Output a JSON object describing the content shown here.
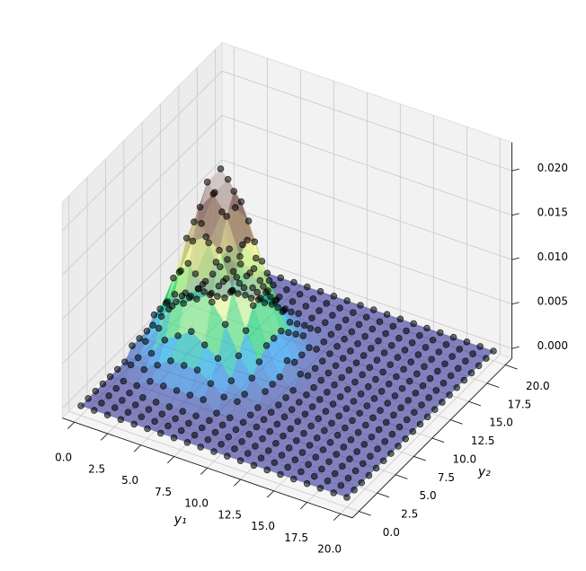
{
  "chart_data": {
    "type": "surface3d",
    "x_label": "y₁",
    "y_label": "y₂",
    "x": [
      0,
      1,
      2,
      3,
      4,
      5,
      6,
      7,
      8,
      9,
      10,
      11,
      12,
      13,
      14,
      15,
      16,
      17,
      18,
      19,
      20
    ],
    "y": [
      0,
      1,
      2,
      3,
      4,
      5,
      6,
      7,
      8,
      9,
      10,
      11,
      12,
      13,
      14,
      15,
      16,
      17,
      18,
      19,
      20
    ],
    "z": [
      [
        0,
        0,
        0,
        0,
        0,
        0,
        0,
        0.001,
        0.001,
        0.001,
        0.002,
        0.001,
        0.001,
        0.001,
        0,
        0,
        0,
        0,
        0,
        0,
        0
      ],
      [
        0,
        0,
        0,
        0,
        0,
        0.001,
        0.001,
        0.002,
        0.003,
        0.004,
        0.004,
        0.004,
        0.003,
        0.002,
        0.001,
        0.001,
        0,
        0,
        0,
        0,
        0
      ],
      [
        0,
        0,
        0,
        0,
        0,
        0.001,
        0.002,
        0.004,
        0.006,
        0.008,
        0.008,
        0.008,
        0.006,
        0.004,
        0.002,
        0.001,
        0,
        0,
        0,
        0,
        0
      ],
      [
        0,
        0,
        0,
        0,
        0.001,
        0.002,
        0.004,
        0.007,
        0.01,
        0.013,
        0.014,
        0.013,
        0.01,
        0.007,
        0.004,
        0.002,
        0.001,
        0,
        0,
        0,
        0
      ],
      [
        0,
        0,
        0,
        0,
        0.001,
        0.003,
        0.005,
        0.009,
        0.014,
        0.017,
        0.019,
        0.017,
        0.014,
        0.009,
        0.005,
        0.003,
        0.001,
        0,
        0,
        0,
        0
      ],
      [
        0,
        0,
        0,
        0,
        0.001,
        0.003,
        0.006,
        0.01,
        0.015,
        0.019,
        0.021,
        0.019,
        0.015,
        0.01,
        0.006,
        0.003,
        0.001,
        0,
        0,
        0,
        0
      ],
      [
        0,
        0,
        0,
        0,
        0.001,
        0.003,
        0.005,
        0.009,
        0.014,
        0.017,
        0.019,
        0.017,
        0.014,
        0.009,
        0.005,
        0.003,
        0.001,
        0,
        0,
        0,
        0
      ],
      [
        0,
        0,
        0,
        0,
        0.001,
        0.002,
        0.004,
        0.007,
        0.01,
        0.013,
        0.014,
        0.013,
        0.01,
        0.007,
        0.004,
        0.002,
        0.001,
        0,
        0,
        0,
        0
      ],
      [
        0,
        0,
        0,
        0,
        0,
        0.001,
        0.002,
        0.004,
        0.006,
        0.008,
        0.008,
        0.008,
        0.006,
        0.004,
        0.002,
        0.001,
        0,
        0,
        0,
        0,
        0
      ],
      [
        0,
        0,
        0,
        0,
        0,
        0.001,
        0.001,
        0.002,
        0.003,
        0.004,
        0.004,
        0.004,
        0.003,
        0.002,
        0.001,
        0.001,
        0,
        0,
        0,
        0,
        0
      ],
      [
        0,
        0,
        0,
        0,
        0,
        0,
        0,
        0.001,
        0.001,
        0.001,
        0.002,
        0.001,
        0.001,
        0.001,
        0,
        0,
        0,
        0,
        0,
        0,
        0
      ],
      [
        0,
        0,
        0,
        0,
        0,
        0,
        0,
        0,
        0,
        0,
        0.001,
        0,
        0,
        0,
        0,
        0,
        0,
        0,
        0,
        0,
        0
      ],
      [
        0,
        0,
        0,
        0,
        0,
        0,
        0,
        0,
        0,
        0,
        0,
        0,
        0,
        0,
        0,
        0,
        0,
        0,
        0,
        0,
        0
      ],
      [
        0,
        0,
        0,
        0,
        0,
        0,
        0,
        0,
        0,
        0,
        0,
        0,
        0,
        0,
        0,
        0,
        0,
        0,
        0,
        0,
        0
      ],
      [
        0,
        0,
        0,
        0,
        0,
        0,
        0,
        0,
        0,
        0,
        0,
        0,
        0,
        0,
        0,
        0,
        0,
        0,
        0,
        0,
        0
      ],
      [
        0,
        0,
        0,
        0,
        0,
        0,
        0,
        0,
        0,
        0,
        0,
        0,
        0,
        0,
        0,
        0,
        0,
        0,
        0,
        0,
        0
      ],
      [
        0,
        0,
        0,
        0,
        0,
        0,
        0,
        0,
        0,
        0,
        0,
        0,
        0,
        0,
        0,
        0,
        0,
        0,
        0,
        0,
        0
      ],
      [
        0,
        0,
        0,
        0,
        0,
        0,
        0,
        0,
        0,
        0,
        0,
        0,
        0,
        0,
        0,
        0,
        0,
        0,
        0,
        0,
        0
      ],
      [
        0,
        0,
        0,
        0,
        0,
        0,
        0,
        0,
        0,
        0,
        0,
        0,
        0,
        0,
        0,
        0,
        0,
        0,
        0,
        0,
        0
      ],
      [
        0,
        0,
        0,
        0,
        0,
        0,
        0,
        0,
        0,
        0,
        0,
        0,
        0,
        0,
        0,
        0,
        0,
        0,
        0,
        0,
        0
      ],
      [
        0,
        0,
        0,
        0,
        0,
        0,
        0,
        0,
        0,
        0,
        0,
        0,
        0,
        0,
        0,
        0,
        0,
        0,
        0,
        0,
        0
      ]
    ],
    "colormap": "terrain",
    "alpha": 0.6,
    "marker_color": "#000000",
    "xlim": [
      -0.9,
      20.9
    ],
    "ylim": [
      -0.9,
      20.9
    ],
    "zlim": [
      -0.0011,
      0.0232
    ],
    "xticks": [
      {
        "value": 0,
        "label": "0.0"
      },
      2.5,
      {
        "value": 5,
        "label": "5.0"
      },
      7.5,
      {
        "value": 10,
        "label": "10.0"
      },
      12.5,
      {
        "value": 15,
        "label": "15.0"
      },
      17.5,
      {
        "value": 20,
        "label": "20.0"
      }
    ],
    "yticks": [
      {
        "value": 0,
        "label": "0.0"
      },
      2.5,
      {
        "value": 5,
        "label": "5.0"
      },
      7.5,
      {
        "value": 10,
        "label": "10.0"
      },
      12.5,
      {
        "value": 15,
        "label": "15.0"
      },
      17.5,
      {
        "value": 20,
        "label": "20.0"
      }
    ],
    "zticks": [
      {
        "value": 0,
        "label": "0.000"
      },
      {
        "value": 0.005,
        "label": "0.005"
      },
      {
        "value": 0.01,
        "label": "0.010"
      },
      {
        "value": 0.015,
        "label": "0.015"
      },
      {
        "value": 0.02,
        "label": "0.020"
      }
    ],
    "grid": true
  }
}
